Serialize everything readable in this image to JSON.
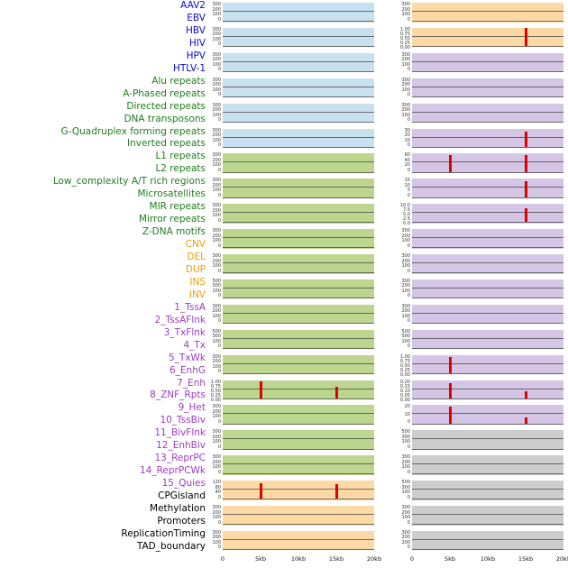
{
  "figure": {
    "x_axis": {
      "ticks": [
        "0",
        "5kb",
        "10kb",
        "15kb",
        "20kb"
      ]
    },
    "label_colors": {
      "virus": "#0a0ad0",
      "repeat": "#1e7d1e",
      "sv": "#f09e00",
      "chromatin": "#9d3cc3",
      "other": "#000000"
    },
    "panel_colors": {
      "blue": "#c8e1ee",
      "green": "#bcd68f",
      "orange": "#fdd9a6",
      "purple": "#d4c6e4",
      "gray": "#cdcdcd"
    },
    "spike_color": "#df0000",
    "row_labels": [
      {
        "text": "AAV2",
        "group": "virus"
      },
      {
        "text": "EBV",
        "group": "virus"
      },
      {
        "text": "HBV",
        "group": "virus"
      },
      {
        "text": "HIV",
        "group": "virus"
      },
      {
        "text": "HPV",
        "group": "virus"
      },
      {
        "text": "HTLV-1",
        "group": "virus"
      },
      {
        "text": "Alu repeats",
        "group": "repeat"
      },
      {
        "text": "A-Phased repeats",
        "group": "repeat"
      },
      {
        "text": "Directed repeats",
        "group": "repeat"
      },
      {
        "text": "DNA transposons",
        "group": "repeat"
      },
      {
        "text": "G-Quadruplex forming repeats",
        "group": "repeat"
      },
      {
        "text": "Inverted repeats",
        "group": "repeat"
      },
      {
        "text": "L1 repeats",
        "group": "repeat"
      },
      {
        "text": "L2 repeats",
        "group": "repeat"
      },
      {
        "text": "Low_complexity A/T rich regions",
        "group": "repeat"
      },
      {
        "text": "Microsatellites",
        "group": "repeat"
      },
      {
        "text": "MIR repeats",
        "group": "repeat"
      },
      {
        "text": "Mirror repeats",
        "group": "repeat"
      },
      {
        "text": "Z-DNA motifs",
        "group": "repeat"
      },
      {
        "text": "CNV",
        "group": "sv"
      },
      {
        "text": "DEL",
        "group": "sv"
      },
      {
        "text": "DUP",
        "group": "sv"
      },
      {
        "text": "INS",
        "group": "sv"
      },
      {
        "text": "INV",
        "group": "sv"
      },
      {
        "text": "1_TssA",
        "group": "chromatin"
      },
      {
        "text": "2_TssAFlnk",
        "group": "chromatin"
      },
      {
        "text": "3_TxFlnk",
        "group": "chromatin"
      },
      {
        "text": "4_Tx",
        "group": "chromatin"
      },
      {
        "text": "5_TxWk",
        "group": "chromatin"
      },
      {
        "text": "6_EnhG",
        "group": "chromatin"
      },
      {
        "text": "7_Enh",
        "group": "chromatin"
      },
      {
        "text": "8_ZNF_Rpts",
        "group": "chromatin"
      },
      {
        "text": "9_Het",
        "group": "chromatin"
      },
      {
        "text": "10_TssBiv",
        "group": "chromatin"
      },
      {
        "text": "11_BivFlnk",
        "group": "chromatin"
      },
      {
        "text": "12_EnhBiv",
        "group": "chromatin"
      },
      {
        "text": "13_ReprPC",
        "group": "chromatin"
      },
      {
        "text": "14_ReprPCWk",
        "group": "chromatin"
      },
      {
        "text": "15_Quies",
        "group": "chromatin"
      },
      {
        "text": "CPGisland",
        "group": "other"
      },
      {
        "text": "Methylation",
        "group": "other"
      },
      {
        "text": "Promoters",
        "group": "other"
      },
      {
        "text": "ReplicationTiming",
        "group": "other"
      },
      {
        "text": "TAD_boundary",
        "group": "other"
      }
    ],
    "strips": [
      {
        "pair": "AAV2 / EBV",
        "left": {
          "bg": "blue",
          "yticks": [
            "300",
            "200",
            "100",
            "0"
          ],
          "spikes": []
        },
        "right": {
          "bg": "orange",
          "yticks": [
            "300",
            "200",
            "100",
            "0"
          ],
          "spikes": []
        }
      },
      {
        "pair": "HBV / HIV",
        "left": {
          "bg": "blue",
          "yticks": [
            "300",
            "200",
            "100",
            "0"
          ],
          "spikes": []
        },
        "right": {
          "bg": "orange",
          "yticks": [
            "1.00",
            "0.75",
            "0.50",
            "0.25",
            "0.00"
          ],
          "spikes": [
            {
              "x": 0.75,
              "h": 0.95
            }
          ]
        }
      },
      {
        "pair": "HPV / HTLV-1",
        "left": {
          "bg": "blue",
          "yticks": [
            "300",
            "200",
            "100",
            "0"
          ],
          "spikes": []
        },
        "right": {
          "bg": "purple",
          "yticks": [
            "300",
            "200",
            "100",
            "0"
          ],
          "spikes": []
        }
      },
      {
        "pair": "Alu repeats / A-Phased repeats",
        "left": {
          "bg": "blue",
          "yticks": [
            "300",
            "200",
            "100",
            "0"
          ],
          "spikes": []
        },
        "right": {
          "bg": "purple",
          "yticks": [
            "300",
            "200",
            "100",
            "0"
          ],
          "spikes": []
        }
      },
      {
        "pair": "Directed repeats / DNA transposons",
        "left": {
          "bg": "blue",
          "yticks": [
            "300",
            "200",
            "100",
            "0"
          ],
          "spikes": []
        },
        "right": {
          "bg": "purple",
          "yticks": [
            "300",
            "200",
            "100",
            "0"
          ],
          "spikes": []
        }
      },
      {
        "pair": "G-Quadruplex forming repeats / Inverted repeats",
        "left": {
          "bg": "blue",
          "yticks": [
            "300",
            "200",
            "100",
            "0"
          ],
          "spikes": []
        },
        "right": {
          "bg": "purple",
          "yticks": [
            "30",
            "20",
            "10",
            "0"
          ],
          "spikes": [
            {
              "x": 0.75,
              "h": 0.8
            }
          ]
        }
      },
      {
        "pair": "L1 repeats / L2 repeats",
        "left": {
          "bg": "green",
          "yticks": [
            "300",
            "200",
            "100",
            "0"
          ],
          "spikes": []
        },
        "right": {
          "bg": "purple",
          "yticks": [
            "60",
            "40",
            "20",
            "0"
          ],
          "spikes": [
            {
              "x": 0.25,
              "h": 0.85
            },
            {
              "x": 0.75,
              "h": 0.85
            }
          ]
        }
      },
      {
        "pair": "Low_complexity A/T rich regions / Microsatellites",
        "left": {
          "bg": "green",
          "yticks": [
            "300",
            "200",
            "100",
            "0"
          ],
          "spikes": []
        },
        "right": {
          "bg": "purple",
          "yticks": [
            "15",
            "10",
            "5",
            "0"
          ],
          "spikes": [
            {
              "x": 0.75,
              "h": 0.8
            }
          ]
        }
      },
      {
        "pair": "MIR repeats / Mirror repeats",
        "left": {
          "bg": "green",
          "yticks": [
            "300",
            "200",
            "100",
            "0"
          ],
          "spikes": []
        },
        "right": {
          "bg": "purple",
          "yticks": [
            "10.0",
            "7.5",
            "5.0",
            "2.5",
            "0.0"
          ],
          "spikes": [
            {
              "x": 0.75,
              "h": 0.7
            }
          ]
        }
      },
      {
        "pair": "Z-DNA motifs / CNV",
        "left": {
          "bg": "green",
          "yticks": [
            "300",
            "200",
            "100",
            "0"
          ],
          "spikes": []
        },
        "right": {
          "bg": "purple",
          "yticks": [
            "300",
            "200",
            "100",
            "0"
          ],
          "spikes": []
        }
      },
      {
        "pair": "DEL / DUP",
        "left": {
          "bg": "green",
          "yticks": [
            "300",
            "200",
            "100",
            "0"
          ],
          "spikes": []
        },
        "right": {
          "bg": "purple",
          "yticks": [
            "300",
            "200",
            "100",
            "0"
          ],
          "spikes": []
        }
      },
      {
        "pair": "INS / INV",
        "left": {
          "bg": "green",
          "yticks": [
            "500",
            "300",
            "100",
            "0"
          ],
          "spikes": []
        },
        "right": {
          "bg": "purple",
          "yticks": [
            "300",
            "200",
            "100",
            "0"
          ],
          "spikes": []
        }
      },
      {
        "pair": "1_TssA / 2_TssAFlnk",
        "left": {
          "bg": "green",
          "yticks": [
            "300",
            "200",
            "100",
            "0"
          ],
          "spikes": []
        },
        "right": {
          "bg": "purple",
          "yticks": [
            "300",
            "200",
            "100",
            "0"
          ],
          "spikes": []
        }
      },
      {
        "pair": "3_TxFlnk / 4_Tx",
        "left": {
          "bg": "green",
          "yticks": [
            "500",
            "300",
            "100",
            "0"
          ],
          "spikes": []
        },
        "right": {
          "bg": "purple",
          "yticks": [
            "500",
            "300",
            "100",
            "0"
          ],
          "spikes": []
        }
      },
      {
        "pair": "5_TxWk / 6_EnhG",
        "left": {
          "bg": "green",
          "yticks": [
            "300",
            "200",
            "100",
            "0"
          ],
          "spikes": []
        },
        "right": {
          "bg": "purple",
          "yticks": [
            "1.00",
            "0.75",
            "0.50",
            "0.25",
            "0.00"
          ],
          "spikes": [
            {
              "x": 0.25,
              "h": 0.85
            }
          ]
        }
      },
      {
        "pair": "7_Enh / 8_ZNF_Rpts",
        "left": {
          "bg": "green",
          "yticks": [
            "1.00",
            "0.75",
            "0.50",
            "0.25",
            "0.00"
          ],
          "spikes": [
            {
              "x": 0.25,
              "h": 0.85
            },
            {
              "x": 0.75,
              "h": 0.6
            }
          ]
        },
        "right": {
          "bg": "purple",
          "yticks": [
            "0.20",
            "0.15",
            "0.10",
            "0.05",
            "0.00"
          ],
          "spikes": [
            {
              "x": 0.25,
              "h": 0.8
            },
            {
              "x": 0.75,
              "h": 0.35
            }
          ]
        }
      },
      {
        "pair": "9_Het / 10_TssBiv",
        "left": {
          "bg": "green",
          "yticks": [
            "300",
            "200",
            "100",
            "0"
          ],
          "spikes": []
        },
        "right": {
          "bg": "purple",
          "yticks": [
            "20",
            "10",
            "0"
          ],
          "spikes": [
            {
              "x": 0.25,
              "h": 0.85
            },
            {
              "x": 0.75,
              "h": 0.3
            }
          ]
        }
      },
      {
        "pair": "11_BivFlnk / 12_EnhBiv",
        "left": {
          "bg": "green",
          "yticks": [
            "300",
            "200",
            "100",
            "0"
          ],
          "spikes": []
        },
        "right": {
          "bg": "gray",
          "yticks": [
            "500",
            "300",
            "100",
            "0"
          ],
          "spikes": []
        }
      },
      {
        "pair": "13_ReprPC / 14_ReprPCWk",
        "left": {
          "bg": "green",
          "yticks": [
            "300",
            "200",
            "100",
            "0"
          ],
          "spikes": []
        },
        "right": {
          "bg": "gray",
          "yticks": [
            "300",
            "200",
            "100",
            "0"
          ],
          "spikes": []
        }
      },
      {
        "pair": "15_Quies / CPGisland",
        "left": {
          "bg": "orange",
          "yticks": [
            "120",
            "80",
            "40",
            "0"
          ],
          "spikes": [
            {
              "x": 0.25,
              "h": 0.8
            },
            {
              "x": 0.75,
              "h": 0.75
            }
          ]
        },
        "right": {
          "bg": "gray",
          "yticks": [
            "500",
            "300",
            "100",
            "0"
          ],
          "spikes": []
        }
      },
      {
        "pair": "Methylation / Promoters",
        "left": {
          "bg": "orange",
          "yticks": [
            "300",
            "200",
            "100",
            "0"
          ],
          "spikes": []
        },
        "right": {
          "bg": "gray",
          "yticks": [
            "300",
            "200",
            "100",
            "0"
          ],
          "spikes": []
        }
      },
      {
        "pair": "ReplicationTiming / TAD_boundary",
        "left": {
          "bg": "orange",
          "yticks": [
            "300",
            "200",
            "100",
            "0"
          ],
          "spikes": []
        },
        "right": {
          "bg": "gray",
          "yticks": [
            "300",
            "200",
            "100",
            "0"
          ],
          "spikes": []
        }
      }
    ]
  },
  "chart_data": {
    "type": "line",
    "title": "",
    "layout": "small-multiples grid: 44 genomic feature rows x 2 dataset columns; each mini-panel is signal vs genomic position with flat near-zero baseline and occasional sharp red peaks",
    "x": {
      "ticks": [
        "0",
        "5kb",
        "10kb",
        "15kb",
        "20kb"
      ],
      "range_kb": [
        0,
        20
      ]
    },
    "features": [
      "AAV2",
      "EBV",
      "HBV",
      "HIV",
      "HPV",
      "HTLV-1",
      "Alu repeats",
      "A-Phased repeats",
      "Directed repeats",
      "DNA transposons",
      "G-Quadruplex forming repeats",
      "Inverted repeats",
      "L1 repeats",
      "L2 repeats",
      "Low_complexity A/T rich regions",
      "Microsatellites",
      "MIR repeats",
      "Mirror repeats",
      "Z-DNA motifs",
      "CNV",
      "DEL",
      "DUP",
      "INS",
      "INV",
      "1_TssA",
      "2_TssAFlnk",
      "3_TxFlnk",
      "4_Tx",
      "5_TxWk",
      "6_EnhG",
      "7_Enh",
      "8_ZNF_Rpts",
      "9_Het",
      "10_TssBiv",
      "11_BivFlnk",
      "12_EnhBiv",
      "13_ReprPC",
      "14_ReprPCWk",
      "15_Quies",
      "CPGisland",
      "Methylation",
      "Promoters",
      "ReplicationTiming",
      "TAD_boundary"
    ],
    "peaks": [
      {
        "column": "right",
        "rows": "HBV / HIV",
        "x_kb": 15,
        "rel_height": 0.95
      },
      {
        "column": "right",
        "rows": "G-Quadruplex forming repeats / Inverted repeats",
        "x_kb": 15,
        "rel_height": 0.8
      },
      {
        "column": "right",
        "rows": "L1 repeats / L2 repeats",
        "x_kb": 5,
        "rel_height": 0.85
      },
      {
        "column": "right",
        "rows": "L1 repeats / L2 repeats",
        "x_kb": 15,
        "rel_height": 0.85
      },
      {
        "column": "right",
        "rows": "Low_complexity A/T rich regions / Microsatellites",
        "x_kb": 15,
        "rel_height": 0.8
      },
      {
        "column": "right",
        "rows": "MIR repeats / Mirror repeats",
        "x_kb": 15,
        "rel_height": 0.7
      },
      {
        "column": "right",
        "rows": "5_TxWk / 6_EnhG",
        "x_kb": 5,
        "rel_height": 0.85
      },
      {
        "column": "right",
        "rows": "7_Enh / 8_ZNF_Rpts",
        "x_kb": 5,
        "rel_height": 0.8
      },
      {
        "column": "right",
        "rows": "7_Enh / 8_ZNF_Rpts",
        "x_kb": 15,
        "rel_height": 0.35
      },
      {
        "column": "right",
        "rows": "9_Het / 10_TssBiv",
        "x_kb": 5,
        "rel_height": 0.85
      },
      {
        "column": "right",
        "rows": "9_Het / 10_TssBiv",
        "x_kb": 15,
        "rel_height": 0.3
      },
      {
        "column": "left",
        "rows": "7_Enh / 8_ZNF_Rpts",
        "x_kb": 5,
        "rel_height": 0.85
      },
      {
        "column": "left",
        "rows": "7_Enh / 8_ZNF_Rpts",
        "x_kb": 15,
        "rel_height": 0.6
      },
      {
        "column": "left",
        "rows": "15_Quies / CPGisland",
        "x_kb": 5,
        "rel_height": 0.8
      },
      {
        "column": "left",
        "rows": "15_Quies / CPGisland",
        "x_kb": 15,
        "rel_height": 0.75
      }
    ]
  }
}
